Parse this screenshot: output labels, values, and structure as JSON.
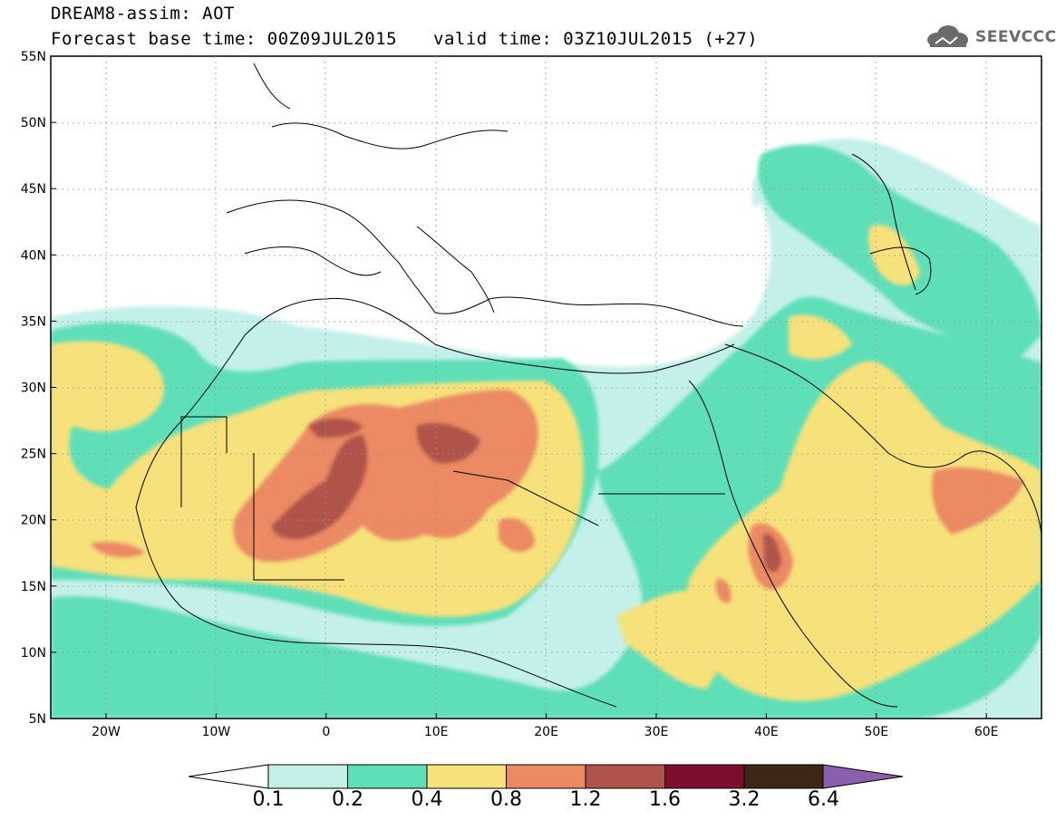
{
  "header": {
    "line1": "DREAM8-assim: AOT",
    "line2": "Forecast base time: 00Z09JUL2015",
    "valid": "valid time: 03Z10JUL2015 (+27)",
    "logo_text": "SEEVCCC"
  },
  "axes": {
    "lat_labels": [
      "55N",
      "50N",
      "45N",
      "40N",
      "35N",
      "30N",
      "25N",
      "20N",
      "15N",
      "10N",
      "5N"
    ],
    "lon_labels": [
      "20W",
      "10W",
      "0",
      "10E",
      "20E",
      "30E",
      "40E",
      "50E",
      "60E"
    ]
  },
  "colorbar": {
    "labels": [
      "0.1",
      "0.2",
      "0.4",
      "0.8",
      "1.2",
      "1.6",
      "3.2",
      "6.4"
    ],
    "colors": [
      "#c4f0ea",
      "#5fdfb8",
      "#f6e17a",
      "#eb8a63",
      "#b0534a",
      "#7e0f2c",
      "#3d2616",
      "#8a5fab"
    ]
  }
}
